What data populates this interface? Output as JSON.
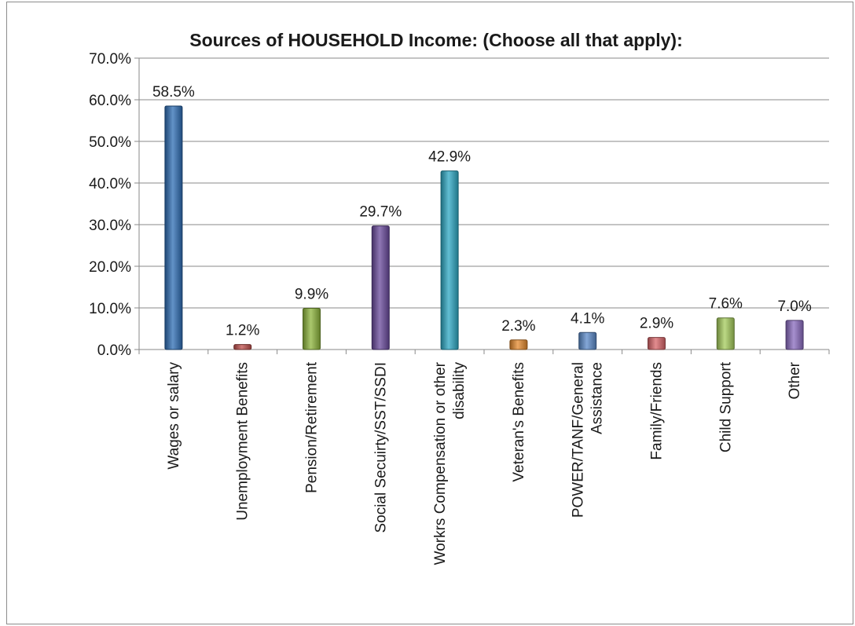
{
  "chart_data": {
    "type": "bar",
    "title": "Sources of HOUSEHOLD Income: (Choose all that apply):",
    "xlabel": "",
    "ylabel": "",
    "ylim": [
      0,
      70
    ],
    "y_tick_labels": [
      "0.0%",
      "10.0%",
      "20.0%",
      "30.0%",
      "40.0%",
      "50.0%",
      "60.0%",
      "70.0%"
    ],
    "y_tick_values": [
      0,
      10,
      20,
      30,
      40,
      50,
      60,
      70
    ],
    "grid": true,
    "legend": "none",
    "categories": [
      [
        "Wages or salary"
      ],
      [
        "Unemployment Benefits"
      ],
      [
        "Pension/Retirement"
      ],
      [
        "Social Secuirty/SST/SSDI"
      ],
      [
        "Workrs Compensation or other",
        "disability"
      ],
      [
        "Veteran's Benefits"
      ],
      [
        "POWER/TANF/General",
        "Assistance"
      ],
      [
        "Family/Friends"
      ],
      [
        "Child Support"
      ],
      [
        "Other"
      ]
    ],
    "values": [
      58.5,
      1.2,
      9.9,
      29.7,
      42.9,
      2.3,
      4.1,
      2.9,
      7.6,
      7.0
    ],
    "data_labels": [
      "58.5%",
      "1.2%",
      "9.9%",
      "29.7%",
      "42.9%",
      "2.3%",
      "4.1%",
      "2.9%",
      "7.6%",
      "7.0%"
    ],
    "bar_colors": [
      "#2e6db4",
      "#c0504d",
      "#8db53c",
      "#6a4a9c",
      "#2ea8c4",
      "#e58a2e",
      "#5b8ac9",
      "#d9666a",
      "#a6cc5c",
      "#8a6bbf"
    ]
  }
}
